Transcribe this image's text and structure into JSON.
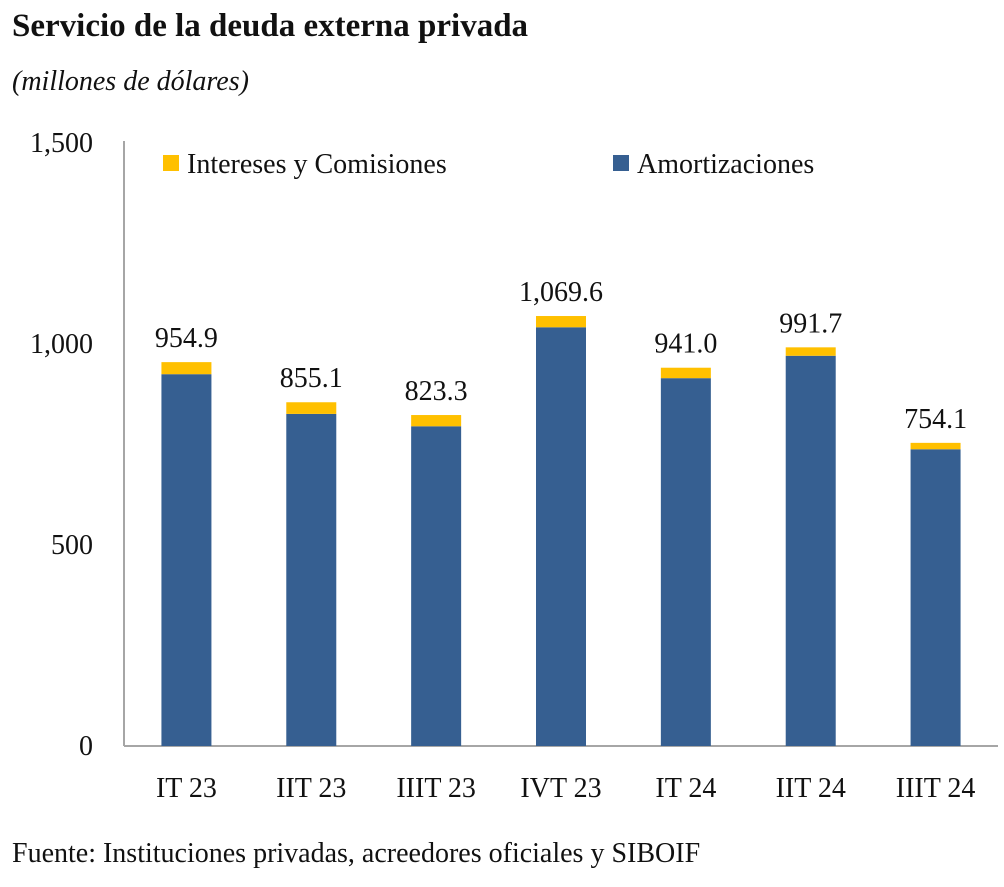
{
  "chart_data": {
    "type": "bar",
    "stacked": true,
    "title": "Servicio de la deuda externa privada",
    "subtitle": "(millones de dólares)",
    "source": "Fuente: Instituciones privadas, acreedores oficiales y SIBOIF",
    "categories": [
      "IT 23",
      "IIT 23",
      "IIIT 23",
      "IVT 23",
      "IT 24",
      "IIT 24",
      "IIIT 24"
    ],
    "series": [
      {
        "name": "Amortizaciones",
        "color": "#365f91",
        "values": [
          924.9,
          826.1,
          795.3,
          1041.6,
          915.0,
          970.7,
          738.1
        ]
      },
      {
        "name": "Intereses y Comisiones",
        "color": "#ffc000",
        "values": [
          30.0,
          29.0,
          28.0,
          28.0,
          26.0,
          21.0,
          16.0
        ]
      }
    ],
    "totals": [
      "954.9",
      "855.1",
      "823.3",
      "1,069.6",
      "941.0",
      "991.7",
      "754.1"
    ],
    "yticks": [
      {
        "value": 0,
        "label": "0"
      },
      {
        "value": 500,
        "label": "500"
      },
      {
        "value": 1000,
        "label": "1,000"
      },
      {
        "value": 1500,
        "label": "1,500"
      }
    ],
    "ylim": [
      0,
      1500
    ],
    "grid": false,
    "legend": {
      "position": "top",
      "order": [
        "Intereses y Comisiones",
        "Amortizaciones"
      ]
    }
  }
}
